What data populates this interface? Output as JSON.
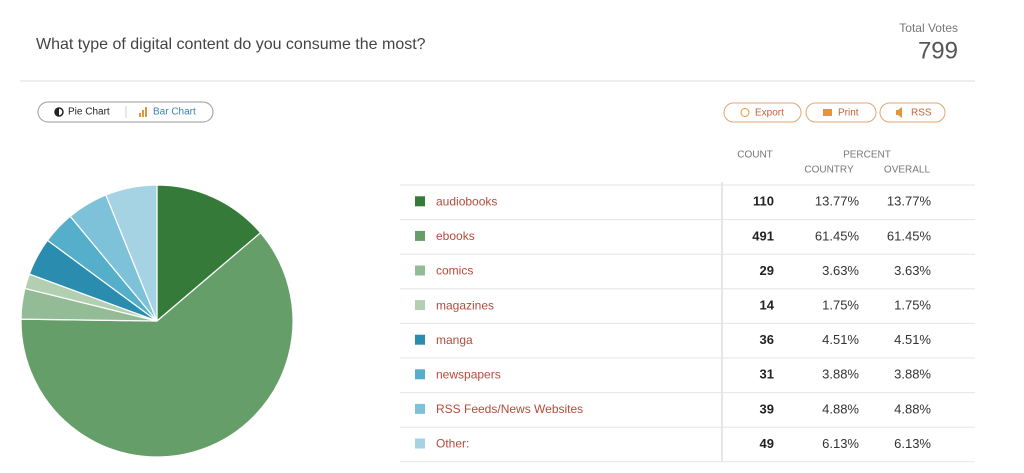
{
  "poll": {
    "question": "What type of digital content do you consume the most?",
    "total_label": "Total Votes",
    "total": 799,
    "buttons": {
      "pie": "Pie Chart",
      "bar": "Bar Chart",
      "export": "Export",
      "print": "Print",
      "rss": "RSS"
    }
  },
  "chart_data": {
    "type": "pie",
    "categories": [
      "audiobooks",
      "ebooks",
      "comics",
      "magazines",
      "manga",
      "newspapers",
      "RSS Feeds/News Websites",
      "Other:"
    ],
    "values": [
      110,
      491,
      29,
      14,
      36,
      31,
      39,
      49
    ],
    "colors": [
      "#357a38",
      "#669e6a",
      "#93bb95",
      "#b2cfb1",
      "#2a8db0",
      "#55aeca",
      "#7ec2da",
      "#a6d3e3"
    ]
  },
  "table": {
    "headers": {
      "count": "COUNT",
      "percent": "PERCENT",
      "country": "COUNTRY",
      "overall": "OVERALL"
    },
    "country": [
      "13.77%",
      "61.45%",
      "3.63%",
      "1.75%",
      "4.51%",
      "3.88%",
      "4.88%",
      "6.13%"
    ],
    "overall": [
      "13.77%",
      "61.45%",
      "3.63%",
      "1.75%",
      "4.51%",
      "3.88%",
      "4.88%",
      "6.13%"
    ]
  }
}
